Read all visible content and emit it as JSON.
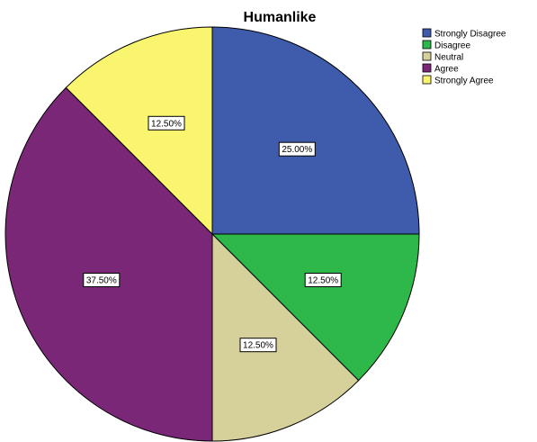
{
  "chart_data": {
    "type": "pie",
    "title": "Humanlike",
    "slices": [
      {
        "label": "Strongly Disagree",
        "value": 25.0,
        "display": "25.00%",
        "color": "#3f5bab"
      },
      {
        "label": "Disagree",
        "value": 12.5,
        "display": "12.50%",
        "color": "#2fb84a"
      },
      {
        "label": "Neutral",
        "value": 12.5,
        "display": "12.50%",
        "color": "#d6d19a"
      },
      {
        "label": "Agree",
        "value": 37.5,
        "display": "37.50%",
        "color": "#7b2778"
      },
      {
        "label": "Strongly Agree",
        "value": 12.5,
        "display": "12.50%",
        "color": "#f9f56e"
      }
    ],
    "start_angle": "12 o'clock",
    "direction": "clockwise",
    "legend_position": "top-right"
  }
}
